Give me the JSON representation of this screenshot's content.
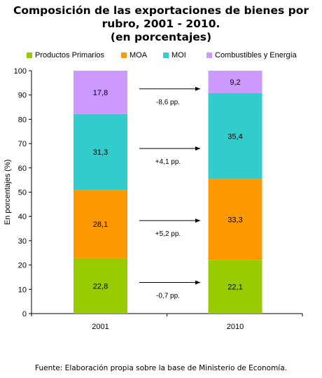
{
  "title_lines": [
    "Composición de las exportaciones de bienes por",
    "rubro, 2001 - 2010.",
    "(en porcentajes)"
  ],
  "source": "Fuente: Elaboración propia sobre la base de Ministerio de Economía.",
  "colors": {
    "primarios": "#99cc00",
    "moa": "#ff9900",
    "moi": "#33cccc",
    "combustibles": "#cc99ff"
  },
  "chart_data": {
    "type": "bar",
    "stacked": true,
    "categories": [
      "2001",
      "2010"
    ],
    "series": [
      {
        "name": "Productos Primarios",
        "color": "#99cc00",
        "values": [
          22.8,
          22.1
        ],
        "labels": [
          "22,8",
          "22,1"
        ]
      },
      {
        "name": "MOA",
        "color": "#ff9900",
        "values": [
          28.1,
          33.3
        ],
        "labels": [
          "28,1",
          "33,3"
        ]
      },
      {
        "name": "MOI",
        "color": "#33cccc",
        "values": [
          31.3,
          35.4
        ],
        "labels": [
          "31,3",
          "35,4"
        ]
      },
      {
        "name": "Combustibles y Energía",
        "color": "#cc99ff",
        "values": [
          17.8,
          9.2
        ],
        "labels": [
          "17,8",
          "9,2"
        ]
      }
    ],
    "annotations": [
      "-0,7 pp.",
      "+5,2 pp.",
      "+4,1 pp.",
      "-8,6 pp."
    ],
    "ylabel": "En porcentajes (%)",
    "ylim": [
      0,
      100
    ],
    "yticks": [
      0,
      10,
      20,
      30,
      40,
      50,
      60,
      70,
      80,
      90,
      100
    ],
    "legend_position": "top",
    "grid": false
  }
}
